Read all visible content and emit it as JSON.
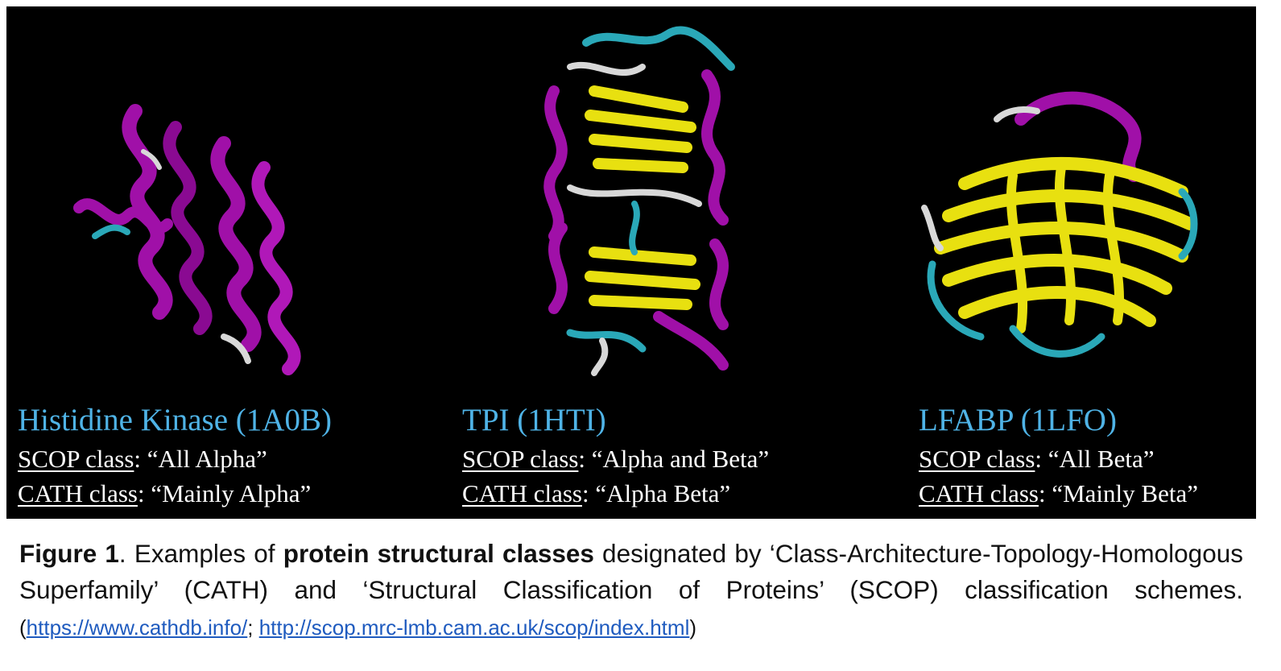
{
  "proteins": [
    {
      "name": "Histidine Kinase (1A0B)",
      "scop_key": "SCOP class",
      "scop_value": "“All Alpha”",
      "cath_key": "CATH class",
      "cath_value": "“Mainly Alpha”"
    },
    {
      "name": "TPI (1HTI)",
      "scop_key": "SCOP class",
      "scop_value": "“Alpha and Beta”",
      "cath_key": "CATH class",
      "cath_value": "“Alpha Beta”"
    },
    {
      "name": "LFABP (1LFO)",
      "scop_key": "SCOP class",
      "scop_value": "“All Beta”",
      "cath_key": "CATH class",
      "cath_value": "“Mainly Beta”"
    }
  ],
  "colors": {
    "panel_background": "#000000",
    "protein_name": "#4fb3e6",
    "helix": "#a010a8",
    "strand": "#e8e010",
    "turn": "#2aa8b8",
    "coil": "#d8d8d8",
    "link": "#1f5bbf"
  },
  "caption": {
    "label": "Figure 1",
    "text1": ". Examples of ",
    "bold_phrase": "protein structural classes",
    "text2": " designated by ‘Class-Architecture-Topology-Homologous Superfamily’ (CATH) and ‘Structural Classification of Proteins’ (SCOP) classification schemes. ",
    "paren_open": "(",
    "link1": "https://www.cathdb.info/",
    "separator": "; ",
    "link2": "http://scop.mrc-lmb.cam.ac.uk/scop/index.html",
    "paren_close": ")"
  }
}
